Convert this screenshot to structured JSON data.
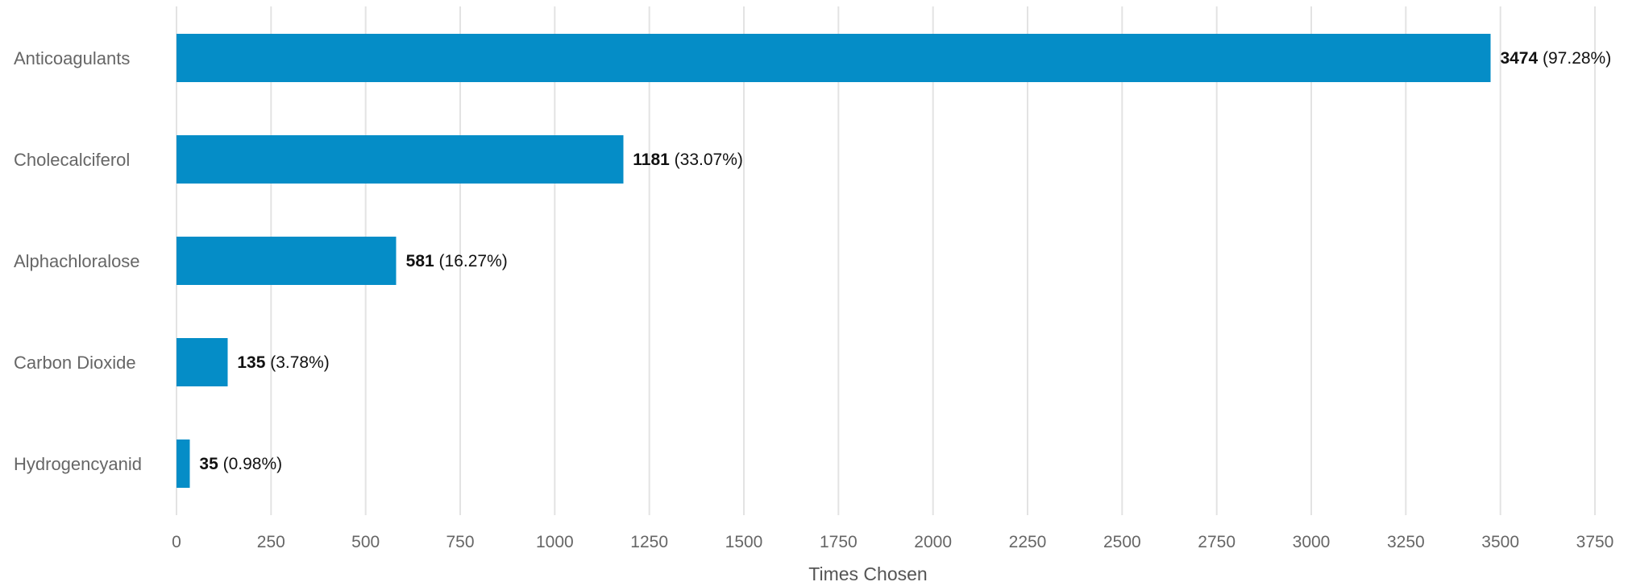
{
  "chart_data": {
    "type": "bar",
    "orientation": "horizontal",
    "categories": [
      "Anticoagulants",
      "Cholecalciferol",
      "Alphachloralose",
      "Carbon Dioxide",
      "Hydrogencyanid"
    ],
    "values": [
      3474,
      1181,
      581,
      135,
      35
    ],
    "value_labels": [
      {
        "count": "3474",
        "percent": "(97.28%)"
      },
      {
        "count": "1181",
        "percent": "(33.07%)"
      },
      {
        "count": "581",
        "percent": "(16.27%)"
      },
      {
        "count": "135",
        "percent": "(3.78%)"
      },
      {
        "count": "35",
        "percent": "(0.98%)"
      }
    ],
    "xlabel": "Times Chosen",
    "ylabel": "",
    "xlim": [
      0,
      3750
    ],
    "xticks": [
      0,
      250,
      500,
      750,
      1000,
      1250,
      1500,
      1750,
      2000,
      2250,
      2500,
      2750,
      3000,
      3250,
      3500,
      3750
    ],
    "grid": "vertical",
    "bar_color": "#058dc7",
    "gridline_color": "#e3e3e3"
  }
}
